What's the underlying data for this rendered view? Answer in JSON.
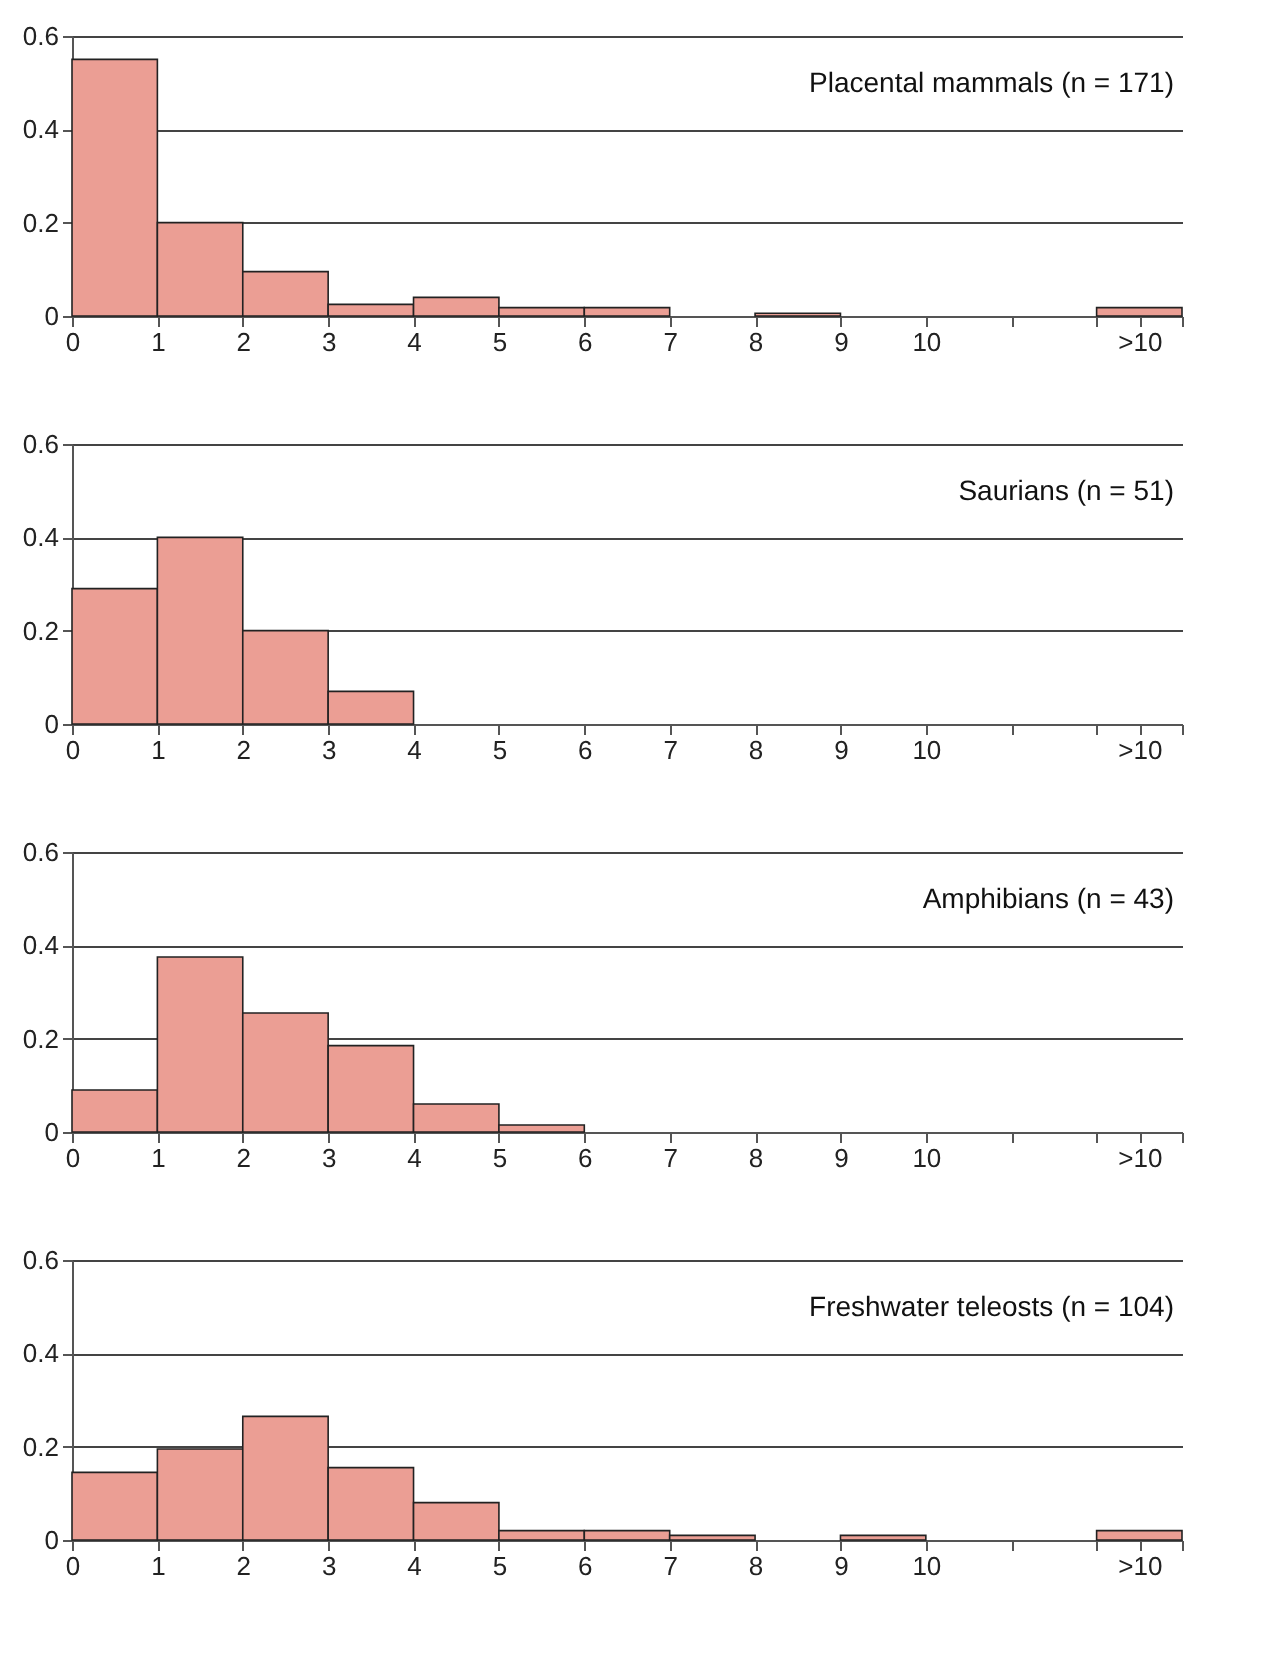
{
  "chart_data": [
    {
      "type": "histogram",
      "annotations": [
        "Placental mammals (n = 171)"
      ],
      "bins": [
        0,
        1,
        2,
        3,
        4,
        5,
        6,
        7,
        8,
        9,
        10,
        11,
        12,
        13
      ],
      "values": [
        0.55,
        0.2,
        0.095,
        0.025,
        0.04,
        0.018,
        0.018,
        0,
        0.006,
        0,
        0,
        0,
        0.018
      ],
      "color": "#eb9e94",
      "xlim": [
        0,
        13
      ],
      "xticks": [
        0,
        1,
        2,
        3,
        4,
        5,
        6,
        7,
        8,
        9,
        10,
        {
          "value": 11,
          "label": null
        },
        {
          "value": 12,
          "label": null
        },
        {
          "value": 12.5,
          "label": ">10"
        },
        {
          "value": 13,
          "label": null
        }
      ],
      "ylim": [
        0,
        0.6
      ],
      "yticks": [
        0,
        0.2,
        0.4,
        0.6
      ],
      "grid": "y"
    },
    {
      "type": "histogram",
      "annotations": [
        "Saurians (n = 51)"
      ],
      "bins": [
        0,
        1,
        2,
        3,
        4,
        5,
        6,
        7,
        8,
        9,
        10,
        11,
        12,
        13
      ],
      "values": [
        0.29,
        0.4,
        0.2,
        0.07,
        0,
        0,
        0,
        0,
        0,
        0,
        0,
        0,
        0
      ],
      "color": "#eb9e94",
      "xlim": [
        0,
        13
      ],
      "xticks": [
        0,
        1,
        2,
        3,
        4,
        5,
        6,
        7,
        8,
        9,
        10,
        {
          "value": 11,
          "label": null
        },
        {
          "value": 12,
          "label": null
        },
        {
          "value": 12.5,
          "label": ">10"
        },
        {
          "value": 13,
          "label": null
        }
      ],
      "ylim": [
        0,
        0.6
      ],
      "yticks": [
        0,
        0.2,
        0.4,
        0.6
      ],
      "grid": "y"
    },
    {
      "type": "histogram",
      "annotations": [
        "Amphibians (n = 43)"
      ],
      "bins": [
        0,
        1,
        2,
        3,
        4,
        5,
        6,
        7,
        8,
        9,
        10,
        11,
        12,
        13
      ],
      "values": [
        0.09,
        0.375,
        0.255,
        0.185,
        0.06,
        0.015,
        0,
        0,
        0,
        0,
        0,
        0,
        0
      ],
      "color": "#eb9e94",
      "xlim": [
        0,
        13
      ],
      "xticks": [
        0,
        1,
        2,
        3,
        4,
        5,
        6,
        7,
        8,
        9,
        10,
        {
          "value": 11,
          "label": null
        },
        {
          "value": 12,
          "label": null
        },
        {
          "value": 12.5,
          "label": ">10"
        },
        {
          "value": 13,
          "label": null
        }
      ],
      "ylim": [
        0,
        0.6
      ],
      "yticks": [
        0,
        0.2,
        0.4,
        0.6
      ],
      "grid": "y"
    },
    {
      "type": "histogram",
      "annotations": [
        "Freshwater teleosts (n = 104)"
      ],
      "bins": [
        0,
        1,
        2,
        3,
        4,
        5,
        6,
        7,
        8,
        9,
        10,
        11,
        12,
        13
      ],
      "values": [
        0.145,
        0.195,
        0.265,
        0.155,
        0.08,
        0.02,
        0.02,
        0.01,
        0,
        0.01,
        0,
        0,
        0.02
      ],
      "color": "#eb9e94",
      "xlim": [
        0,
        13
      ],
      "xticks": [
        0,
        1,
        2,
        3,
        4,
        5,
        6,
        7,
        8,
        9,
        10,
        {
          "value": 11,
          "label": null
        },
        {
          "value": 12,
          "label": null
        },
        {
          "value": 12.5,
          "label": ">10"
        },
        {
          "value": 13,
          "label": null
        }
      ],
      "ylim": [
        0,
        0.6
      ],
      "yticks": [
        0,
        0.2,
        0.4,
        0.6
      ],
      "grid": "y"
    }
  ]
}
